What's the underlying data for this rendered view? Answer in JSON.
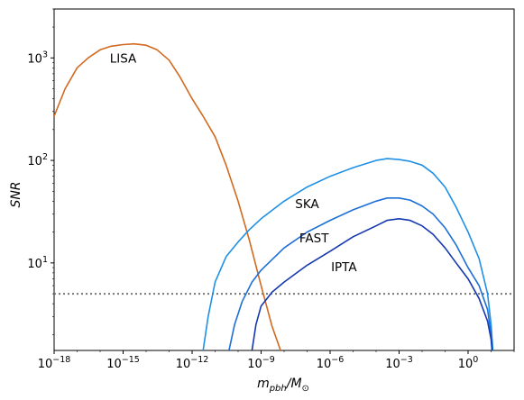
{
  "chart_data": {
    "type": "line",
    "title": "",
    "xlabel_main": "m",
    "xlabel_sub": "pbh",
    "xlabel_suffix": "/M",
    "xlabel_odot": "⊙",
    "ylabel": "SNR",
    "xscale": "log",
    "yscale": "log",
    "xlim": [
      1e-18,
      100
    ],
    "ylim": [
      1.4,
      3000
    ],
    "x_tick_base": "10",
    "x_ticks": [
      {
        "value": 1e-18,
        "exp": "−18"
      },
      {
        "value": 1e-15,
        "exp": "−15"
      },
      {
        "value": 1e-12,
        "exp": "−12"
      },
      {
        "value": 1e-09,
        "exp": "−9"
      },
      {
        "value": 1e-06,
        "exp": "−6"
      },
      {
        "value": 0.001,
        "exp": "−3"
      },
      {
        "value": 1,
        "exp": "0"
      }
    ],
    "y_tick_base": "10",
    "y_ticks": [
      {
        "value": 10,
        "exp": "1"
      },
      {
        "value": 100,
        "exp": "2"
      },
      {
        "value": 1000,
        "exp": "3"
      }
    ],
    "threshold": {
      "value": 5,
      "style": "dotted",
      "color": "#777777"
    },
    "series": [
      {
        "name": "LISA",
        "color": "#d2691e",
        "label_at": [
          1e-15,
          1000
        ],
        "points": [
          [
            1e-18,
            270
          ],
          [
            3e-18,
            500
          ],
          [
            1e-17,
            800
          ],
          [
            3e-17,
            1000
          ],
          [
            1e-16,
            1200
          ],
          [
            3e-16,
            1300
          ],
          [
            1e-15,
            1350
          ],
          [
            3e-15,
            1370
          ],
          [
            1e-14,
            1330
          ],
          [
            3e-14,
            1200
          ],
          [
            1e-13,
            950
          ],
          [
            3e-13,
            650
          ],
          [
            1e-12,
            400
          ],
          [
            3e-12,
            270
          ],
          [
            1e-11,
            170
          ],
          [
            3e-11,
            90
          ],
          [
            1e-10,
            40
          ],
          [
            3e-10,
            17
          ],
          [
            1e-09,
            6
          ],
          [
            3e-09,
            2.4
          ],
          [
            7e-09,
            1.4
          ]
        ]
      },
      {
        "name": "SKA",
        "color": "#1e90e6",
        "label_at": [
          1e-07,
          38
        ],
        "points": [
          [
            3e-12,
            1.4
          ],
          [
            5e-12,
            3
          ],
          [
            1e-11,
            6.5
          ],
          [
            3e-11,
            11.5
          ],
          [
            1e-10,
            16
          ],
          [
            3e-10,
            21
          ],
          [
            1e-09,
            27
          ],
          [
            1e-08,
            40
          ],
          [
            1e-07,
            55
          ],
          [
            1e-06,
            70
          ],
          [
            1e-05,
            85
          ],
          [
            0.0001,
            100
          ],
          [
            0.0003,
            104
          ],
          [
            0.001,
            102
          ],
          [
            0.003,
            98
          ],
          [
            0.01,
            90
          ],
          [
            0.03,
            75
          ],
          [
            0.1,
            55
          ],
          [
            0.3,
            35
          ],
          [
            1,
            20
          ],
          [
            3,
            11
          ],
          [
            7,
            5
          ],
          [
            10,
            2.5
          ],
          [
            12,
            1.4
          ]
        ]
      },
      {
        "name": "FAST",
        "color": "#1c6fd6",
        "label_at": [
          2e-07,
          17.5
        ],
        "points": [
          [
            4e-11,
            1.4
          ],
          [
            7e-11,
            2.5
          ],
          [
            1.5e-10,
            4.2
          ],
          [
            4e-10,
            6.5
          ],
          [
            1e-09,
            8.5
          ],
          [
            1e-08,
            14
          ],
          [
            1e-07,
            20
          ],
          [
            1e-06,
            26
          ],
          [
            1e-05,
            33
          ],
          [
            0.0001,
            40
          ],
          [
            0.0003,
            43
          ],
          [
            0.001,
            43
          ],
          [
            0.003,
            41
          ],
          [
            0.01,
            36
          ],
          [
            0.03,
            30
          ],
          [
            0.1,
            22
          ],
          [
            0.3,
            15
          ],
          [
            1,
            9
          ],
          [
            3,
            6
          ],
          [
            7,
            3.5
          ],
          [
            10,
            2
          ],
          [
            11,
            1.4
          ]
        ]
      },
      {
        "name": "IPTA",
        "color": "#1538b0",
        "label_at": [
          4e-06,
          9.2
        ],
        "points": [
          [
            4e-10,
            1.4
          ],
          [
            6e-10,
            2.5
          ],
          [
            1e-09,
            3.8
          ],
          [
            3e-09,
            5.2
          ],
          [
            1e-08,
            6.5
          ],
          [
            1e-07,
            9.5
          ],
          [
            1e-06,
            13
          ],
          [
            1e-05,
            18
          ],
          [
            0.0001,
            23
          ],
          [
            0.0003,
            26
          ],
          [
            0.001,
            27
          ],
          [
            0.003,
            26
          ],
          [
            0.01,
            23
          ],
          [
            0.03,
            19
          ],
          [
            0.1,
            14
          ],
          [
            0.3,
            10
          ],
          [
            1,
            7
          ],
          [
            3,
            4.5
          ],
          [
            7,
            2.7
          ],
          [
            10,
            1.8
          ],
          [
            11,
            1.4
          ]
        ]
      }
    ]
  }
}
